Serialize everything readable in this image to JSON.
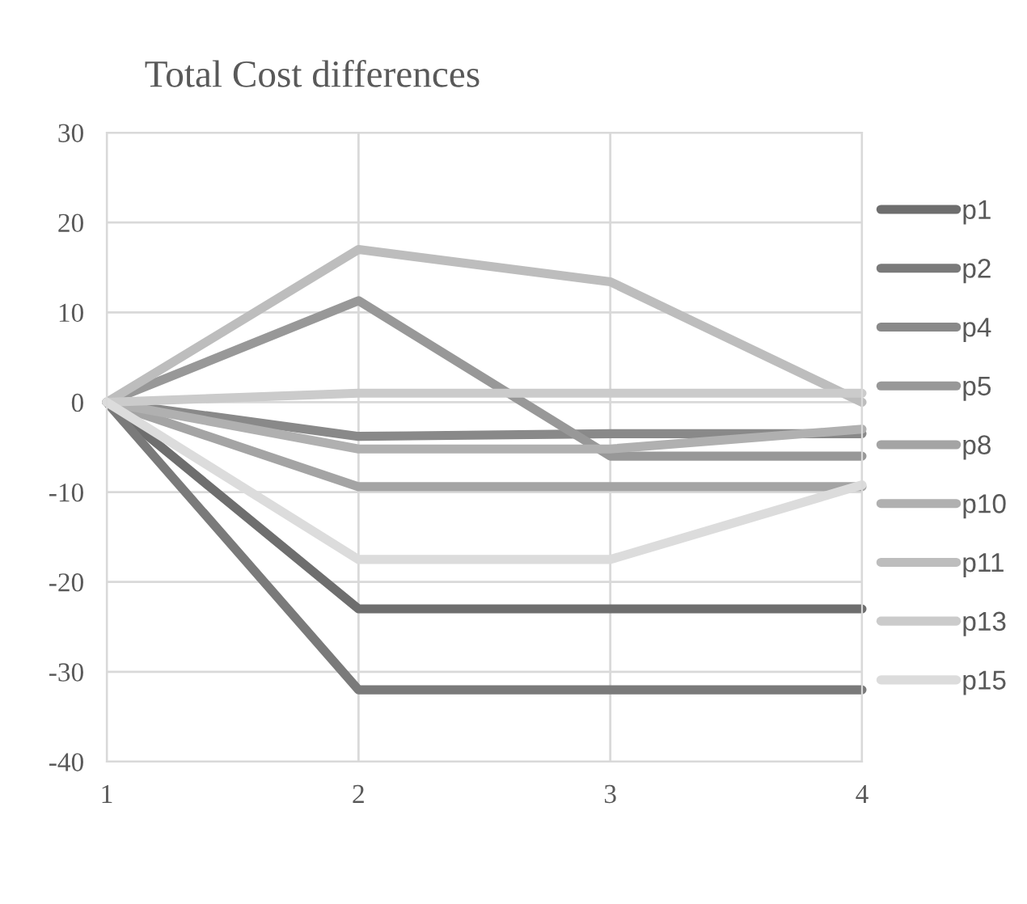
{
  "chart_data": {
    "type": "line",
    "title": "Total Cost differences",
    "x": [
      1,
      2,
      3,
      4
    ],
    "series": [
      {
        "name": "p1",
        "color": "#6e6e6e",
        "values": [
          0,
          -23,
          -23,
          -23
        ]
      },
      {
        "name": "p2",
        "color": "#7a7a7a",
        "values": [
          0,
          -32,
          -32,
          -32
        ]
      },
      {
        "name": "p4",
        "color": "#898989",
        "values": [
          0,
          -3.8,
          -3.5,
          -3.5
        ]
      },
      {
        "name": "p5",
        "color": "#989898",
        "values": [
          0,
          11.3,
          -6,
          -6
        ]
      },
      {
        "name": "p8",
        "color": "#a4a4a4",
        "values": [
          0,
          -9.4,
          -9.4,
          -9.4
        ]
      },
      {
        "name": "p10",
        "color": "#b0b0b0",
        "values": [
          0,
          -5.2,
          -5.2,
          -3
        ]
      },
      {
        "name": "p11",
        "color": "#bdbdbd",
        "values": [
          0,
          17,
          13.4,
          0
        ]
      },
      {
        "name": "p13",
        "color": "#cbcbcb",
        "values": [
          0,
          1,
          1,
          1
        ]
      },
      {
        "name": "p15",
        "color": "#dcdcdc",
        "values": [
          0,
          -17.5,
          -17.5,
          -9.2
        ]
      }
    ],
    "xlim": [
      1,
      4
    ],
    "xticks": [
      1,
      2,
      3,
      4
    ],
    "ylim": [
      -40,
      30
    ],
    "yticks": [
      -40,
      -30,
      -20,
      -10,
      0,
      10,
      20,
      30
    ],
    "grid": true,
    "legend": "right",
    "marker": "none",
    "line_style": "solid"
  }
}
